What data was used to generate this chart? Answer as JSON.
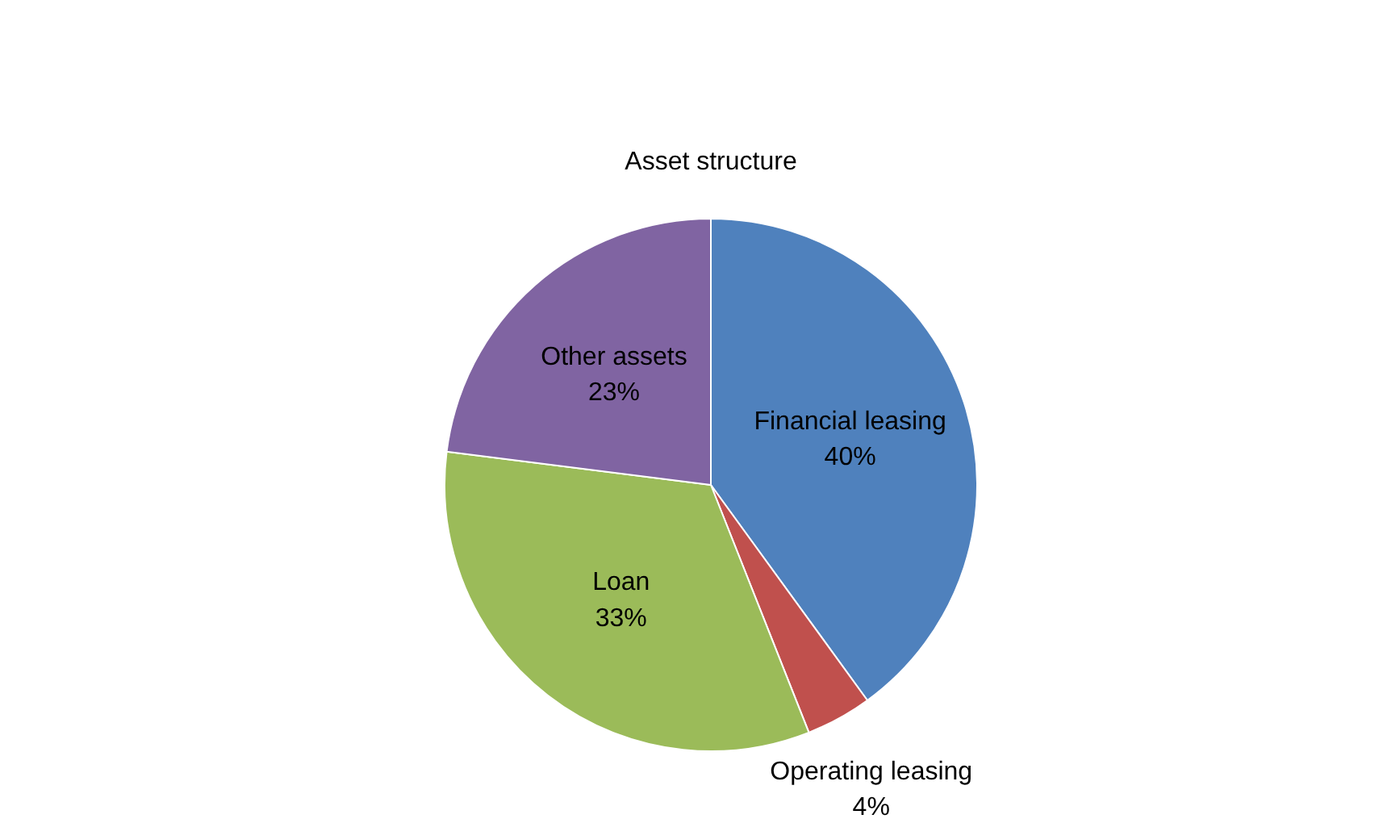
{
  "chart_data": {
    "type": "pie",
    "title": "Asset structure",
    "categories": [
      "Financial leasing",
      "Operating leasing",
      "Loan",
      "Other assets"
    ],
    "values": [
      40,
      4,
      33,
      23
    ],
    "colors": [
      "#4f81bd",
      "#c0504d",
      "#9bbb59",
      "#8064a2"
    ],
    "value_labels": [
      "40%",
      "4%",
      "33%",
      "23%"
    ]
  }
}
